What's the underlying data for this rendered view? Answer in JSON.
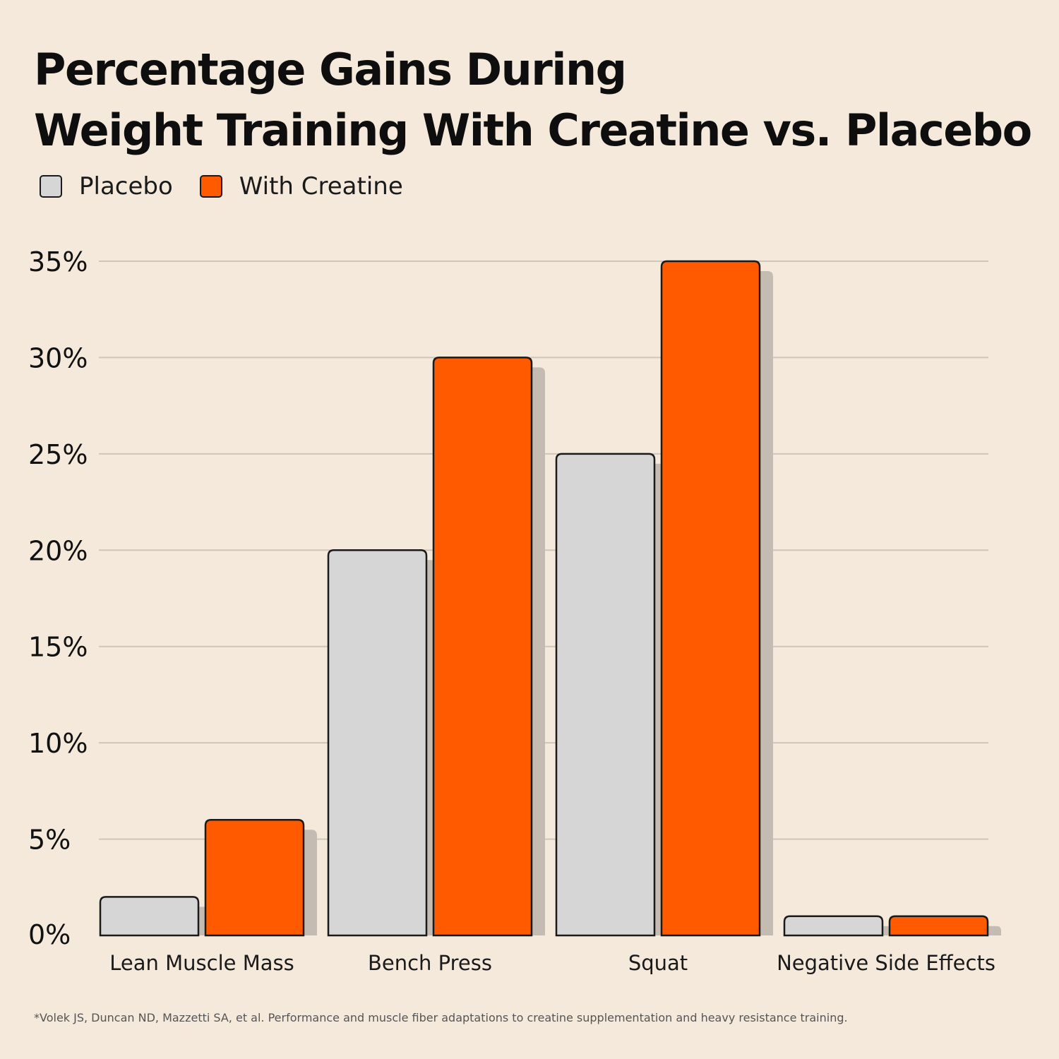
{
  "title_lines": [
    "Percentage Gains During",
    "Weight Training With Creatine vs. Placebo"
  ],
  "colors": {
    "background": "#f5e9dc",
    "placebo": "#d6d6d6",
    "creatine": "#ff5a00",
    "outline": "#1a1a1a",
    "shadow": "#c4bcb3",
    "gridline": "#cfc6bb"
  },
  "chart_data": {
    "type": "bar",
    "title": "Percentage Gains During Weight Training With Creatine vs. Placebo",
    "categories": [
      "Lean Muscle Mass",
      "Bench Press",
      "Squat",
      "Negative Side Effects"
    ],
    "series": [
      {
        "name": "Placebo",
        "values": [
          2,
          20,
          25,
          1
        ]
      },
      {
        "name": "With Creatine",
        "values": [
          6,
          30,
          35,
          1
        ]
      }
    ],
    "ylim": [
      0,
      35
    ],
    "yticks": [
      0,
      5,
      10,
      15,
      20,
      25,
      30,
      35
    ],
    "ytick_labels": [
      "0%",
      "5%",
      "10%",
      "15%",
      "20%",
      "25%",
      "30%",
      "35%"
    ],
    "xlabel": "",
    "ylabel": "",
    "grid": true,
    "legend_position": "top-left"
  },
  "footnote": "*Volek JS, Duncan ND, Mazzetti SA, et al. Performance and muscle fiber adaptations to creatine supplementation and heavy resistance training."
}
